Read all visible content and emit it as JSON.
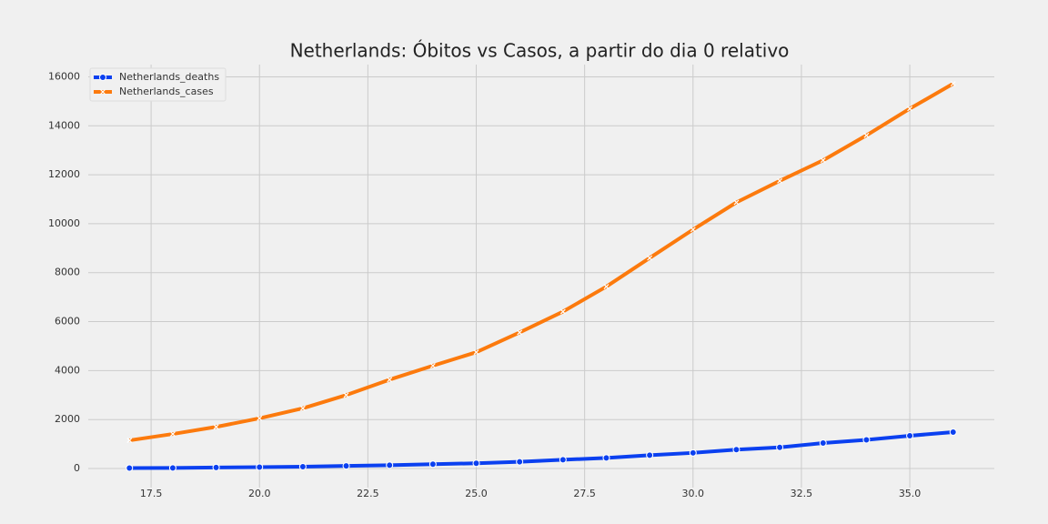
{
  "chart_data": {
    "type": "line",
    "title": "Netherlands: Óbitos vs Casos, a partir do dia 0 relativo",
    "x": [
      17,
      18,
      19,
      20,
      21,
      22,
      23,
      24,
      25,
      26,
      27,
      28,
      29,
      30,
      31,
      32,
      33,
      34,
      35,
      36
    ],
    "series": [
      {
        "name": "Netherlands_deaths",
        "color": "#0b40f0",
        "marker": "circle",
        "values": [
          20,
          24,
          43,
          58,
          76,
          106,
          136,
          179,
          213,
          276,
          356,
          434,
          546,
          639,
          771,
          864,
          1039,
          1173,
          1339,
          1487
        ]
      },
      {
        "name": "Netherlands_cases",
        "color": "#fc7a0d",
        "marker": "x",
        "values": [
          1150,
          1410,
          1700,
          2050,
          2460,
          3000,
          3630,
          4200,
          4750,
          5560,
          6410,
          7430,
          8600,
          9760,
          10870,
          11750,
          12590,
          13610,
          14700,
          15720
        ]
      }
    ],
    "xlim": [
      16.05,
      36.95
    ],
    "xticks": [
      17.5,
      {
        "value": 20,
        "label": "20.0"
      },
      22.5,
      {
        "value": 25,
        "label": "25.0"
      },
      27.5,
      {
        "value": 30,
        "label": "30.0"
      },
      32.5,
      {
        "value": 35,
        "label": "35.0"
      }
    ],
    "ylim": [
      -780,
      16500
    ],
    "yticks": [
      0,
      2000,
      4000,
      6000,
      8000,
      10000,
      12000,
      14000,
      16000
    ],
    "grid": true,
    "legend": "upper left"
  }
}
